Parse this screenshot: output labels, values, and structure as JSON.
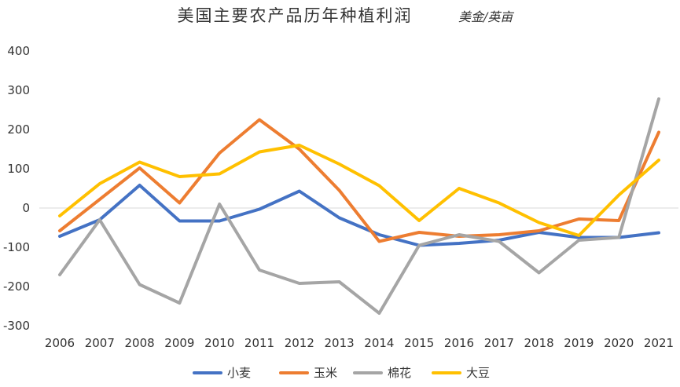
{
  "chart_data": {
    "type": "line",
    "title": "美国主要农产品历年种植利润",
    "subtitle": "美金/英亩",
    "x": [
      "2006",
      "2007",
      "2008",
      "2009",
      "2010",
      "2011",
      "2012",
      "2013",
      "2014",
      "2015",
      "2016",
      "2017",
      "2018",
      "2019",
      "2020",
      "2021"
    ],
    "ylim": [
      -300,
      400
    ],
    "yticks": [
      400,
      300,
      200,
      100,
      0,
      -100,
      -200,
      -300
    ],
    "grid": false,
    "legend_position": "bottom",
    "series": [
      {
        "name": "小麦",
        "color": "#4472C4",
        "values": [
          -72,
          -30,
          58,
          -33,
          -33,
          -3,
          43,
          -25,
          -68,
          -95,
          -90,
          -82,
          -62,
          -75,
          -75,
          -63
        ]
      },
      {
        "name": "玉米",
        "color": "#ED7D31",
        "values": [
          -58,
          22,
          102,
          13,
          140,
          225,
          150,
          45,
          -85,
          -62,
          -72,
          -68,
          -58,
          -28,
          -32,
          193
        ]
      },
      {
        "name": "棉花",
        "color": "#A5A5A5",
        "values": [
          -170,
          -30,
          -195,
          -242,
          10,
          -158,
          -192,
          -188,
          -268,
          -95,
          -68,
          -85,
          -165,
          -82,
          -75,
          278
        ]
      },
      {
        "name": "大豆",
        "color": "#FFC000",
        "values": [
          -20,
          62,
          117,
          80,
          87,
          143,
          160,
          112,
          57,
          -32,
          50,
          13,
          -37,
          -70,
          33,
          122
        ]
      }
    ]
  }
}
